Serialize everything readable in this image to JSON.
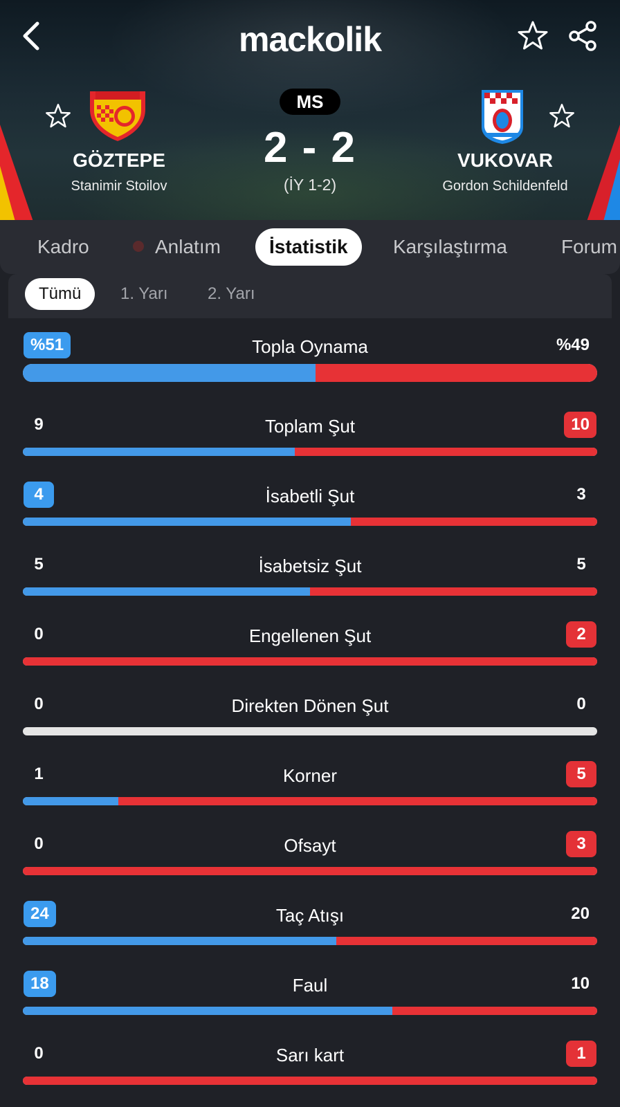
{
  "app": {
    "logo": "mackolik"
  },
  "icons": {
    "back": "back-arrow-icon",
    "favorite": "star-icon",
    "share": "share-icon"
  },
  "match": {
    "status": "MS",
    "score": "2 - 2",
    "halftime": "(İY 1-2)",
    "home": {
      "name": "GÖZTEPE",
      "coach": "Stanimir Stoilov",
      "colors": [
        "#f2c200",
        "#e4262b"
      ]
    },
    "away": {
      "name": "VUKOVAR",
      "coach": "Gordon Schildenfeld",
      "colors": [
        "#1e88e5",
        "#d8202a"
      ]
    }
  },
  "tabs": [
    "Kadro",
    "Anlatım",
    "İstatistik",
    "Karşılaştırma",
    "Forum"
  ],
  "active_tab": "İstatistik",
  "subtabs": [
    "Tümü",
    "1. Yarı",
    "2. Yarı"
  ],
  "active_subtab": "Tümü",
  "colors": {
    "home_bar": "#4399e8",
    "away_bar": "#e73236",
    "neutral_bar": "#e5e5e5",
    "bg": "#1f2127"
  },
  "stats": [
    {
      "label": "Topla Oynama",
      "left": "%51",
      "right": "%49",
      "lnum": 51,
      "rnum": 49,
      "lead": "left"
    },
    {
      "label": "Toplam Şut",
      "left": "9",
      "right": "10",
      "lnum": 9,
      "rnum": 10,
      "lead": "right"
    },
    {
      "label": "İsabetli Şut",
      "left": "4",
      "right": "3",
      "lnum": 4,
      "rnum": 3,
      "lead": "left"
    },
    {
      "label": "İsabetsiz Şut",
      "left": "5",
      "right": "5",
      "lnum": 5,
      "rnum": 5,
      "lead": "none"
    },
    {
      "label": "Engellenen Şut",
      "left": "0",
      "right": "2",
      "lnum": 0,
      "rnum": 2,
      "lead": "right"
    },
    {
      "label": "Direkten Dönen Şut",
      "left": "0",
      "right": "0",
      "lnum": 0,
      "rnum": 0,
      "lead": "none"
    },
    {
      "label": "Korner",
      "left": "1",
      "right": "5",
      "lnum": 1,
      "rnum": 5,
      "lead": "right"
    },
    {
      "label": "Ofsayt",
      "left": "0",
      "right": "3",
      "lnum": 0,
      "rnum": 3,
      "lead": "right"
    },
    {
      "label": "Taç Atışı",
      "left": "24",
      "right": "20",
      "lnum": 24,
      "rnum": 20,
      "lead": "left"
    },
    {
      "label": "Faul",
      "left": "18",
      "right": "10",
      "lnum": 18,
      "rnum": 10,
      "lead": "left"
    },
    {
      "label": "Sarı kart",
      "left": "0",
      "right": "1",
      "lnum": 0,
      "rnum": 1,
      "lead": "right"
    }
  ]
}
